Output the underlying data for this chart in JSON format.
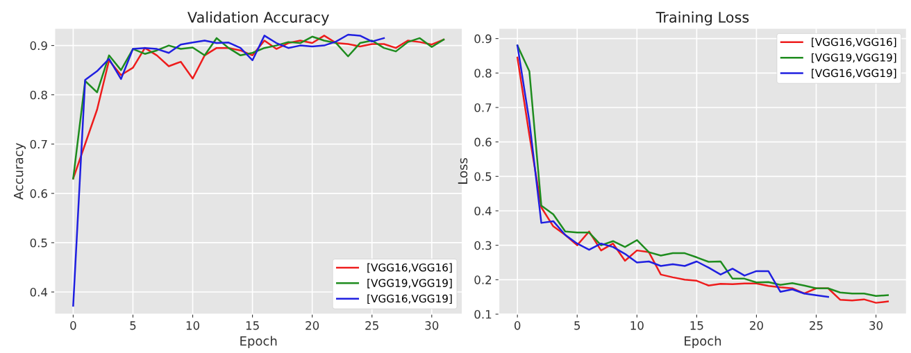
{
  "chart_data": [
    {
      "type": "line",
      "title": "Validation Accuracy",
      "xlabel": "Epoch",
      "ylabel": "Accuracy",
      "xlim": [
        -1.55,
        32.55
      ],
      "ylim": [
        0.355,
        0.935
      ],
      "xticks": [
        0,
        5,
        10,
        15,
        20,
        25,
        30
      ],
      "yticks": [
        0.4,
        0.5,
        0.6,
        0.7,
        0.8,
        0.9
      ],
      "grid": true,
      "legend": "bottom right",
      "marker": "none",
      "line_style": "solid",
      "series": [
        {
          "name": "[VGG16,VGG16]",
          "color": "#ee1c1c",
          "x": [
            0,
            1,
            2,
            3,
            4,
            5,
            6,
            7,
            8,
            9,
            10,
            11,
            12,
            13,
            14,
            15,
            16,
            17,
            18,
            19,
            20,
            21,
            22,
            23,
            24,
            25,
            26,
            27,
            28,
            29,
            30,
            31
          ],
          "values": [
            0.63,
            0.7,
            0.77,
            0.87,
            0.84,
            0.855,
            0.895,
            0.88,
            0.858,
            0.867,
            0.833,
            0.88,
            0.895,
            0.895,
            0.89,
            0.88,
            0.91,
            0.893,
            0.905,
            0.91,
            0.905,
            0.92,
            0.905,
            0.903,
            0.898,
            0.903,
            0.903,
            0.895,
            0.91,
            0.907,
            0.902,
            0.912
          ]
        },
        {
          "name": "[VGG19,VGG19]",
          "color": "#1e8c1e",
          "x": [
            0,
            1,
            2,
            3,
            4,
            5,
            6,
            7,
            8,
            9,
            10,
            11,
            12,
            13,
            14,
            15,
            16,
            17,
            18,
            19,
            20,
            21,
            22,
            23,
            24,
            25,
            26,
            27,
            28,
            29,
            30,
            31
          ],
          "values": [
            0.63,
            0.828,
            0.805,
            0.88,
            0.85,
            0.893,
            0.883,
            0.89,
            0.9,
            0.893,
            0.896,
            0.88,
            0.915,
            0.895,
            0.88,
            0.885,
            0.895,
            0.9,
            0.907,
            0.905,
            0.918,
            0.91,
            0.905,
            0.878,
            0.905,
            0.91,
            0.895,
            0.888,
            0.907,
            0.915,
            0.897,
            0.912
          ]
        },
        {
          "name": "[VGG16,VGG19]",
          "color": "#1f1fe0",
          "x": [
            0,
            1,
            2,
            3,
            4,
            5,
            6,
            7,
            8,
            9,
            10,
            11,
            12,
            13,
            14,
            15,
            16,
            17,
            18,
            19,
            20,
            21,
            22,
            23,
            24,
            25,
            26
          ],
          "values": [
            0.372,
            0.83,
            0.848,
            0.873,
            0.832,
            0.893,
            0.895,
            0.893,
            0.885,
            0.902,
            0.906,
            0.91,
            0.905,
            0.906,
            0.895,
            0.87,
            0.92,
            0.905,
            0.895,
            0.9,
            0.898,
            0.9,
            0.908,
            0.922,
            0.92,
            0.908,
            0.915
          ]
        }
      ]
    },
    {
      "type": "line",
      "title": "Training Loss",
      "xlabel": "Epoch",
      "ylabel": "Loss",
      "xlim": [
        -1.55,
        32.55
      ],
      "ylim": [
        0.1,
        0.93
      ],
      "xticks": [
        0,
        5,
        10,
        15,
        20,
        25,
        30
      ],
      "yticks": [
        0.1,
        0.2,
        0.3,
        0.4,
        0.5,
        0.6,
        0.7,
        0.8,
        0.9
      ],
      "grid": true,
      "legend": "top right",
      "marker": "none",
      "line_style": "solid",
      "series": [
        {
          "name": "[VGG16,VGG16]",
          "color": "#ee1c1c",
          "x": [
            0,
            1,
            2,
            3,
            4,
            5,
            6,
            7,
            8,
            9,
            10,
            11,
            12,
            13,
            14,
            15,
            16,
            17,
            18,
            19,
            20,
            21,
            22,
            23,
            24,
            25,
            26,
            27,
            28,
            29,
            30,
            31
          ],
          "values": [
            0.845,
            0.62,
            0.41,
            0.355,
            0.33,
            0.3,
            0.34,
            0.285,
            0.305,
            0.255,
            0.285,
            0.28,
            0.215,
            0.207,
            0.2,
            0.197,
            0.183,
            0.188,
            0.187,
            0.189,
            0.189,
            0.182,
            0.178,
            0.175,
            0.16,
            0.175,
            0.175,
            0.142,
            0.14,
            0.143,
            0.133,
            0.137
          ]
        },
        {
          "name": "[VGG19,VGG19]",
          "color": "#1e8c1e",
          "x": [
            0,
            1,
            2,
            3,
            4,
            5,
            6,
            7,
            8,
            9,
            10,
            11,
            12,
            13,
            14,
            15,
            16,
            17,
            18,
            19,
            20,
            21,
            22,
            23,
            24,
            25,
            26,
            27,
            28,
            29,
            30,
            31
          ],
          "values": [
            0.88,
            0.805,
            0.415,
            0.39,
            0.34,
            0.337,
            0.337,
            0.3,
            0.312,
            0.295,
            0.315,
            0.28,
            0.27,
            0.277,
            0.277,
            0.265,
            0.252,
            0.253,
            0.203,
            0.203,
            0.192,
            0.193,
            0.185,
            0.19,
            0.183,
            0.175,
            0.175,
            0.163,
            0.16,
            0.16,
            0.153,
            0.155
          ]
        },
        {
          "name": "[VGG16,VGG19]",
          "color": "#1f1fe0",
          "x": [
            0,
            1,
            2,
            3,
            4,
            5,
            6,
            7,
            8,
            9,
            10,
            11,
            12,
            13,
            14,
            15,
            16,
            17,
            18,
            19,
            20,
            21,
            22,
            23,
            24,
            25,
            26
          ],
          "values": [
            0.88,
            0.66,
            0.365,
            0.37,
            0.33,
            0.305,
            0.287,
            0.305,
            0.295,
            0.275,
            0.25,
            0.253,
            0.24,
            0.245,
            0.24,
            0.253,
            0.235,
            0.215,
            0.232,
            0.212,
            0.225,
            0.225,
            0.165,
            0.172,
            0.16,
            0.155,
            0.15
          ]
        }
      ]
    }
  ]
}
